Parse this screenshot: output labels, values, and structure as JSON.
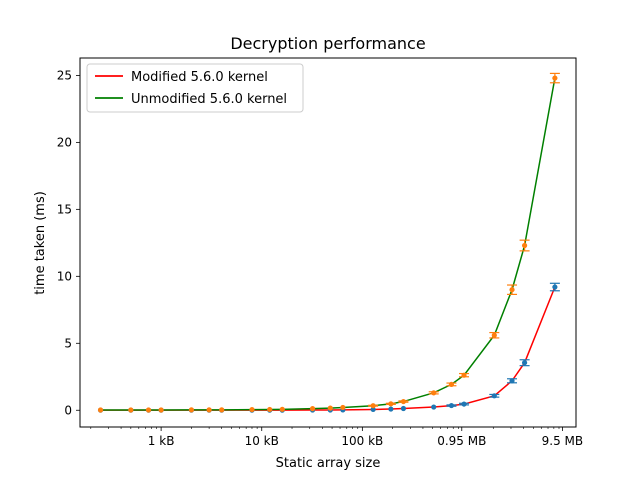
{
  "chart_data": {
    "type": "line",
    "title": "Decryption performance",
    "xlabel": "Static array size",
    "ylabel": "time taken (ms)",
    "xscale": "log",
    "xlim": [
      160,
      13600000
    ],
    "ylim": [
      -1.25,
      26.3
    ],
    "x_ticks": [
      {
        "value": 1024,
        "label": "1 kB"
      },
      {
        "value": 10240,
        "label": "10 kB"
      },
      {
        "value": 102400,
        "label": "100 kB"
      },
      {
        "value": 996147,
        "label": "0.95 MB"
      },
      {
        "value": 9961472,
        "label": "9.5 MB"
      }
    ],
    "y_ticks": [
      0,
      5,
      10,
      15,
      20,
      25
    ],
    "grid": false,
    "legend_position": "top-left",
    "x": [
      256,
      512,
      768,
      1024,
      2048,
      3072,
      4096,
      8192,
      12288,
      16384,
      32768,
      49152,
      65536,
      131072,
      196608,
      262144,
      524288,
      786432,
      1048576,
      2097152,
      3145728,
      4194304,
      8388608
    ],
    "series": [
      {
        "name": "Modified 5.6.0 kernel",
        "color": "#ff0000",
        "marker_color": "#1f77b4",
        "values": [
          0.01,
          0.01,
          0.01,
          0.01,
          0.01,
          0.01,
          0.01,
          0.01,
          0.01,
          0.01,
          0.02,
          0.02,
          0.03,
          0.06,
          0.09,
          0.13,
          0.24,
          0.35,
          0.46,
          1.08,
          2.2,
          3.55,
          9.2
        ],
        "errors": [
          0,
          0,
          0,
          0,
          0,
          0,
          0,
          0,
          0,
          0,
          0,
          0,
          0,
          0,
          0,
          0,
          0,
          0.05,
          0.06,
          0.1,
          0.15,
          0.22,
          0.28
        ]
      },
      {
        "name": "Unmodified 5.6.0 kernel",
        "color": "#008000",
        "marker_color": "#ff7f0e",
        "values": [
          0.02,
          0.02,
          0.02,
          0.02,
          0.03,
          0.03,
          0.03,
          0.05,
          0.06,
          0.07,
          0.12,
          0.16,
          0.21,
          0.34,
          0.48,
          0.65,
          1.3,
          1.93,
          2.62,
          5.6,
          9.0,
          12.3,
          24.8
        ],
        "errors": [
          0,
          0,
          0,
          0,
          0,
          0,
          0,
          0,
          0,
          0,
          0,
          0,
          0,
          0.03,
          0.04,
          0.05,
          0.08,
          0.1,
          0.12,
          0.2,
          0.35,
          0.4,
          0.35
        ]
      }
    ]
  }
}
